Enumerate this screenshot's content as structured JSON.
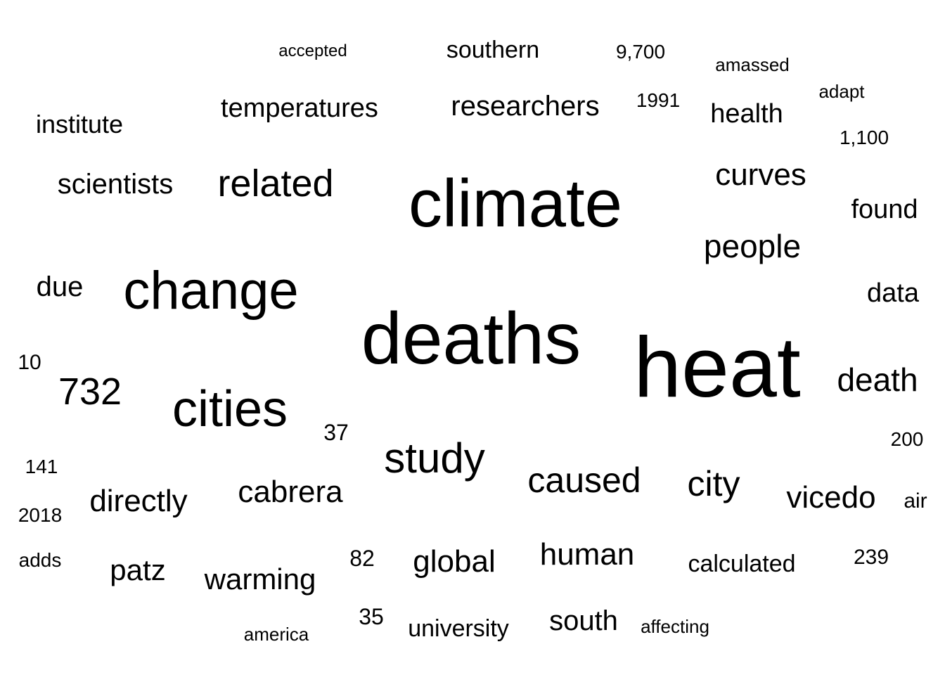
{
  "text_color": "#000000",
  "words": [
    {
      "text": "heat"
    },
    {
      "text": "deaths"
    },
    {
      "text": "climate"
    },
    {
      "text": "change"
    },
    {
      "text": "cities"
    },
    {
      "text": "study"
    },
    {
      "text": "related"
    },
    {
      "text": "732"
    },
    {
      "text": "caused"
    },
    {
      "text": "city"
    },
    {
      "text": "death"
    },
    {
      "text": "people"
    },
    {
      "text": "curves"
    },
    {
      "text": "vicedo"
    },
    {
      "text": "cabrera"
    },
    {
      "text": "directly"
    },
    {
      "text": "global"
    },
    {
      "text": "human"
    },
    {
      "text": "researchers"
    },
    {
      "text": "warming"
    },
    {
      "text": "temperatures"
    },
    {
      "text": "scientists"
    },
    {
      "text": "patz"
    },
    {
      "text": "south"
    },
    {
      "text": "health"
    },
    {
      "text": "data"
    },
    {
      "text": "found"
    },
    {
      "text": "due"
    },
    {
      "text": "institute"
    },
    {
      "text": "southern"
    },
    {
      "text": "calculated"
    },
    {
      "text": "university"
    },
    {
      "text": "37"
    },
    {
      "text": "82"
    },
    {
      "text": "35"
    },
    {
      "text": "10"
    },
    {
      "text": "141"
    },
    {
      "text": "200"
    },
    {
      "text": "239"
    },
    {
      "text": "2018"
    },
    {
      "text": "air"
    },
    {
      "text": "adds"
    },
    {
      "text": "1991"
    },
    {
      "text": "9,700"
    },
    {
      "text": "1,100"
    },
    {
      "text": "adapt"
    },
    {
      "text": "amassed"
    },
    {
      "text": "accepted"
    },
    {
      "text": "affecting"
    },
    {
      "text": "america"
    }
  ]
}
